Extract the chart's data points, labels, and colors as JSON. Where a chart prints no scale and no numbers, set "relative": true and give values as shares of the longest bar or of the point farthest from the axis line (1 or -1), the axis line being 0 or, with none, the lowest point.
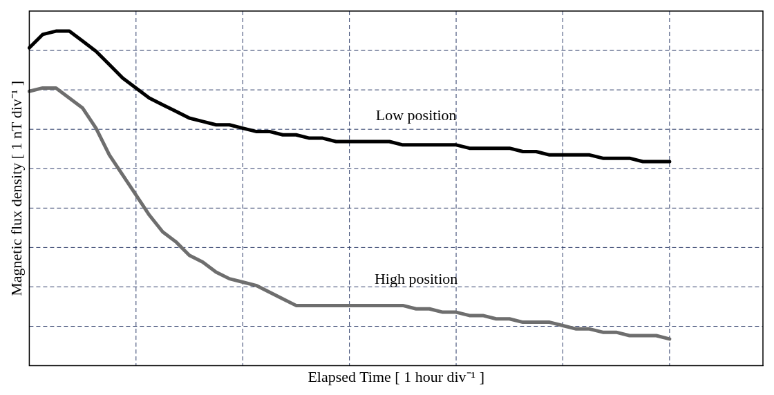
{
  "chart_data": {
    "type": "line",
    "xlabel": "Elapsed Time [ 1 hour div⁻¹ ]",
    "ylabel": "Magnetic flux density [ 1 nT div⁻¹ ]",
    "relative": true,
    "grid": true,
    "marker": "none",
    "line_style": "solid",
    "categories": [
      null,
      null,
      null,
      null,
      null,
      null,
      null,
      null,
      null,
      null,
      null,
      null,
      null,
      null,
      null,
      null,
      null,
      null,
      null,
      null,
      null,
      null,
      null,
      null,
      null,
      null,
      null,
      null,
      null,
      null,
      null,
      null,
      null,
      null,
      null,
      null,
      null,
      null,
      null,
      null,
      null,
      null,
      null,
      null,
      null,
      null,
      null,
      null,
      null,
      null,
      null,
      null,
      null,
      null,
      null,
      null
    ],
    "series": [
      {
        "name": "Low position",
        "color": "#000000",
        "values": [
          0.95,
          0.99,
          1,
          1,
          0.97,
          0.94,
          0.9,
          0.86,
          0.83,
          0.8,
          0.78,
          0.76,
          0.74,
          0.73,
          0.72,
          0.72,
          0.71,
          0.7,
          0.7,
          0.69,
          0.69,
          0.68,
          0.68,
          0.67,
          0.67,
          0.67,
          0.67,
          0.67,
          0.66,
          0.66,
          0.66,
          0.66,
          0.66,
          0.65,
          0.65,
          0.65,
          0.65,
          0.64,
          0.64,
          0.63,
          0.63,
          0.63,
          0.63,
          0.62,
          0.62,
          0.62,
          0.61,
          0.61,
          0.61,
          null,
          null,
          null,
          null,
          null,
          null,
          null
        ]
      },
      {
        "name": "High position",
        "color": "#6e6e6e",
        "values": [
          0.82,
          0.83,
          0.83,
          0.8,
          0.77,
          0.71,
          0.63,
          0.57,
          0.51,
          0.45,
          0.4,
          0.37,
          0.33,
          0.31,
          0.28,
          0.26,
          0.25,
          0.24,
          0.22,
          0.2,
          0.18,
          0.18,
          0.18,
          0.18,
          0.18,
          0.18,
          0.18,
          0.18,
          0.18,
          0.17,
          0.17,
          0.16,
          0.16,
          0.15,
          0.15,
          0.14,
          0.14,
          0.13,
          0.13,
          0.13,
          0.12,
          0.11,
          0.11,
          0.1,
          0.1,
          0.09,
          0.09,
          0.09,
          0.08,
          null,
          null,
          null,
          null,
          null,
          null,
          null
        ]
      }
    ]
  }
}
